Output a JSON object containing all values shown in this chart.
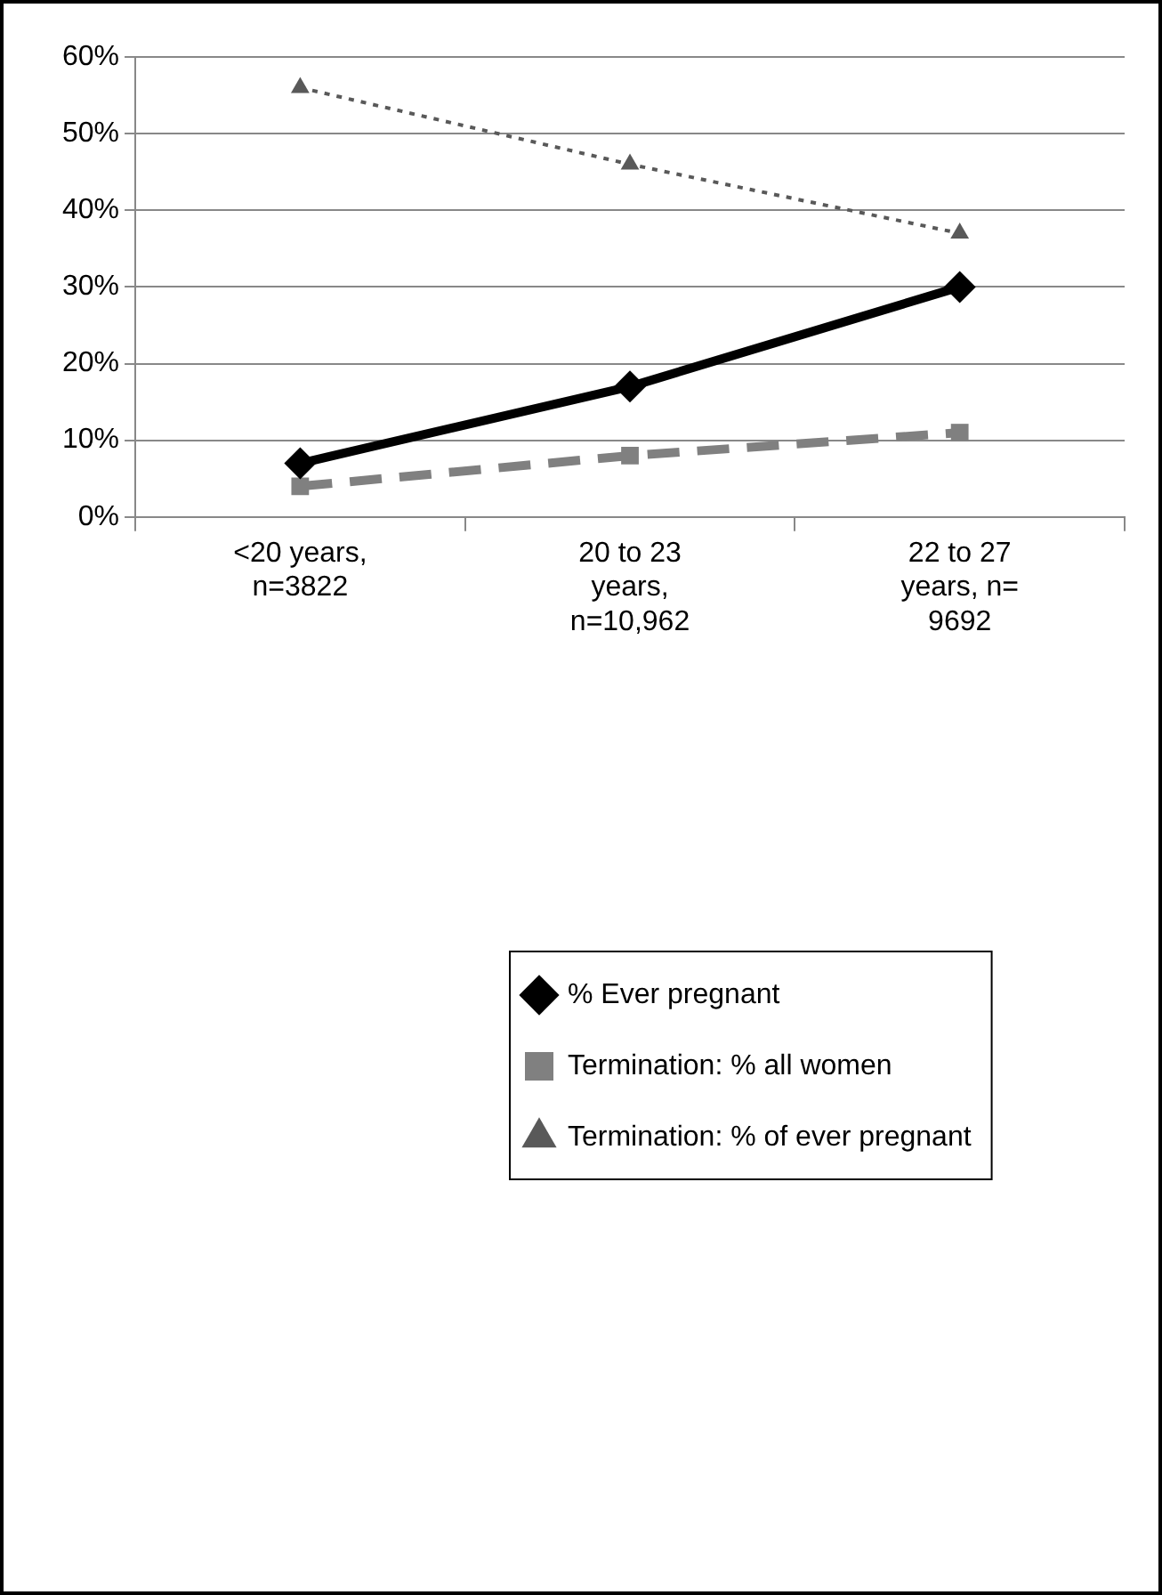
{
  "chart_data": {
    "type": "line",
    "categories": [
      "<20 years, n=3822",
      "20 to 23 years, n=10,962",
      "22 to 27 years, n= 9692"
    ],
    "series": [
      {
        "name": "% Ever pregnant",
        "color": "#000000",
        "values": [
          7,
          17,
          30
        ],
        "marker": "diamond",
        "line_style": "solid"
      },
      {
        "name": "Termination: % all women",
        "color": "#808080",
        "values": [
          4,
          8,
          11
        ],
        "marker": "square",
        "line_style": "dashed"
      },
      {
        "name": "Termination: % of ever pregnant",
        "color": "#595959",
        "values": [
          56,
          46,
          37
        ],
        "marker": "triangle",
        "line_style": "dotted"
      }
    ],
    "ylim": [
      0,
      60
    ],
    "yticks": [
      {
        "value": 0,
        "label": "0%"
      },
      {
        "value": 10,
        "label": "10%"
      },
      {
        "value": 20,
        "label": "20%"
      },
      {
        "value": 30,
        "label": "30%"
      },
      {
        "value": 40,
        "label": "40%"
      },
      {
        "value": 50,
        "label": "50%"
      },
      {
        "value": 60,
        "label": "60%"
      }
    ],
    "grid": "y",
    "legend": "bottom"
  }
}
